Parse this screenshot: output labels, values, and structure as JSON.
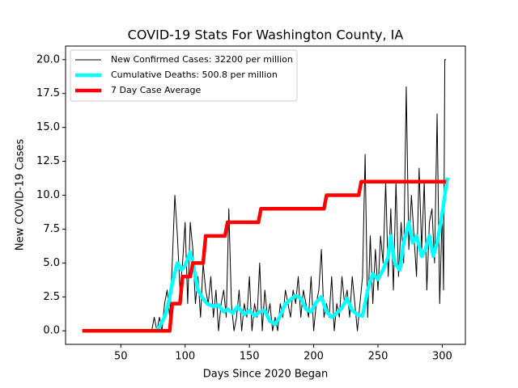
{
  "chart_data": {
    "type": "line",
    "title": "COVID-19 Stats For Washington County, IA",
    "x_label": "Days Since 2020 Began",
    "y_label": "New COVID-19 Cases",
    "xlim": [
      7,
      318
    ],
    "ylim": [
      -1,
      21
    ],
    "xticks": [
      50,
      100,
      150,
      200,
      250,
      300
    ],
    "yticks": [
      {
        "value": 0,
        "label": "0.0"
      },
      2.5,
      {
        "value": 5,
        "label": "5.0"
      },
      7.5,
      {
        "value": 10,
        "label": "10.0"
      },
      12.5,
      {
        "value": 15,
        "label": "15.0"
      },
      17.5,
      {
        "value": 20,
        "label": "20.0"
      }
    ],
    "legend": "upper left",
    "series": [
      {
        "name": "New Confirmed Cases: 32200 per million",
        "color": "#000000",
        "linewidth": 1,
        "x": [
          20,
          74,
          76,
          78,
          80,
          82,
          84,
          86,
          88,
          90,
          92,
          94,
          96,
          98,
          100,
          102,
          104,
          106,
          108,
          110,
          112,
          114,
          116,
          118,
          120,
          122,
          124,
          126,
          128,
          130,
          132,
          134,
          136,
          138,
          140,
          142,
          144,
          146,
          148,
          150,
          152,
          154,
          156,
          158,
          160,
          162,
          164,
          166,
          168,
          170,
          172,
          174,
          176,
          178,
          180,
          182,
          184,
          186,
          188,
          190,
          192,
          194,
          196,
          198,
          200,
          202,
          204,
          206,
          208,
          210,
          212,
          214,
          216,
          218,
          220,
          222,
          224,
          226,
          228,
          230,
          232,
          234,
          236,
          238,
          240,
          242,
          244,
          246,
          248,
          250,
          252,
          254,
          256,
          258,
          260,
          262,
          264,
          266,
          268,
          270,
          272,
          274,
          276,
          278,
          280,
          282,
          284,
          286,
          288,
          290,
          292,
          294,
          296,
          298,
          300,
          301,
          302,
          303
        ],
        "values": [
          0,
          0,
          1,
          0,
          1,
          0,
          2,
          3,
          1,
          5,
          10,
          7,
          3,
          5,
          8,
          2,
          8,
          6,
          2,
          4,
          1,
          5,
          3,
          2,
          4,
          1,
          3,
          0,
          2,
          3,
          1,
          9,
          2,
          0,
          1,
          3,
          0,
          2,
          1,
          4,
          0,
          2,
          1,
          5,
          0,
          3,
          1,
          2,
          0,
          1,
          0,
          2,
          1,
          3,
          2,
          1,
          3,
          2,
          4,
          1,
          3,
          2,
          1,
          4,
          0,
          2,
          3,
          6,
          1,
          2,
          1,
          4,
          0,
          2,
          1,
          4,
          2,
          3,
          1,
          4,
          2,
          0,
          2,
          4,
          13,
          1,
          7,
          2,
          6,
          3,
          7,
          5,
          11,
          4,
          9,
          3,
          11,
          4,
          8,
          5,
          18,
          6,
          10,
          7,
          4,
          12,
          6,
          11,
          3,
          8,
          9,
          5,
          16,
          2,
          9,
          3,
          20,
          20
        ]
      },
      {
        "name": "Cumulative Deaths: 500.8 per million",
        "color": "#00ffff",
        "linewidth": 4.5,
        "x": [
          77,
          80,
          84,
          87,
          90,
          94,
          97,
          100,
          104,
          107,
          110,
          113,
          117,
          122,
          126,
          130,
          133,
          137,
          141,
          146,
          150,
          154,
          158,
          162,
          166,
          170,
          174,
          178,
          182,
          186,
          190,
          194,
          198,
          202,
          206,
          210,
          214,
          218,
          222,
          226,
          230,
          234,
          238,
          242,
          246,
          250,
          254,
          258,
          260,
          263,
          267,
          270,
          274,
          277,
          280,
          284,
          287,
          290,
          293,
          296,
          299,
          302,
          304
        ],
        "values": [
          0,
          0.3,
          1,
          2,
          3.5,
          5,
          4.5,
          4.8,
          5.8,
          4.5,
          3,
          2.5,
          2,
          1.8,
          1.9,
          1.4,
          1.6,
          1.3,
          1.8,
          1.2,
          1.5,
          1.1,
          1.4,
          1.5,
          0.7,
          0.5,
          1.1,
          2,
          2.3,
          2.6,
          2.4,
          1.6,
          1.4,
          2.1,
          2.5,
          1.4,
          1,
          1.3,
          1.7,
          2.4,
          1.5,
          1.2,
          1.1,
          3,
          4.2,
          3.8,
          4.5,
          5.5,
          7,
          5,
          4.5,
          6.5,
          8,
          6.5,
          7,
          5.5,
          6,
          7,
          5.5,
          6.5,
          8,
          10,
          11.3
        ]
      },
      {
        "name": "7 Day Case Average",
        "color": "#ff0000",
        "linewidth": 4.5,
        "x": [
          20,
          88,
          90,
          96,
          98,
          104,
          106,
          114,
          116,
          131,
          133,
          157,
          159,
          208,
          210,
          235,
          237,
          303
        ],
        "values": [
          0,
          0,
          2,
          2,
          4,
          4,
          5,
          5,
          7,
          7,
          8,
          8,
          9,
          9,
          10,
          10,
          11,
          11
        ]
      }
    ]
  }
}
